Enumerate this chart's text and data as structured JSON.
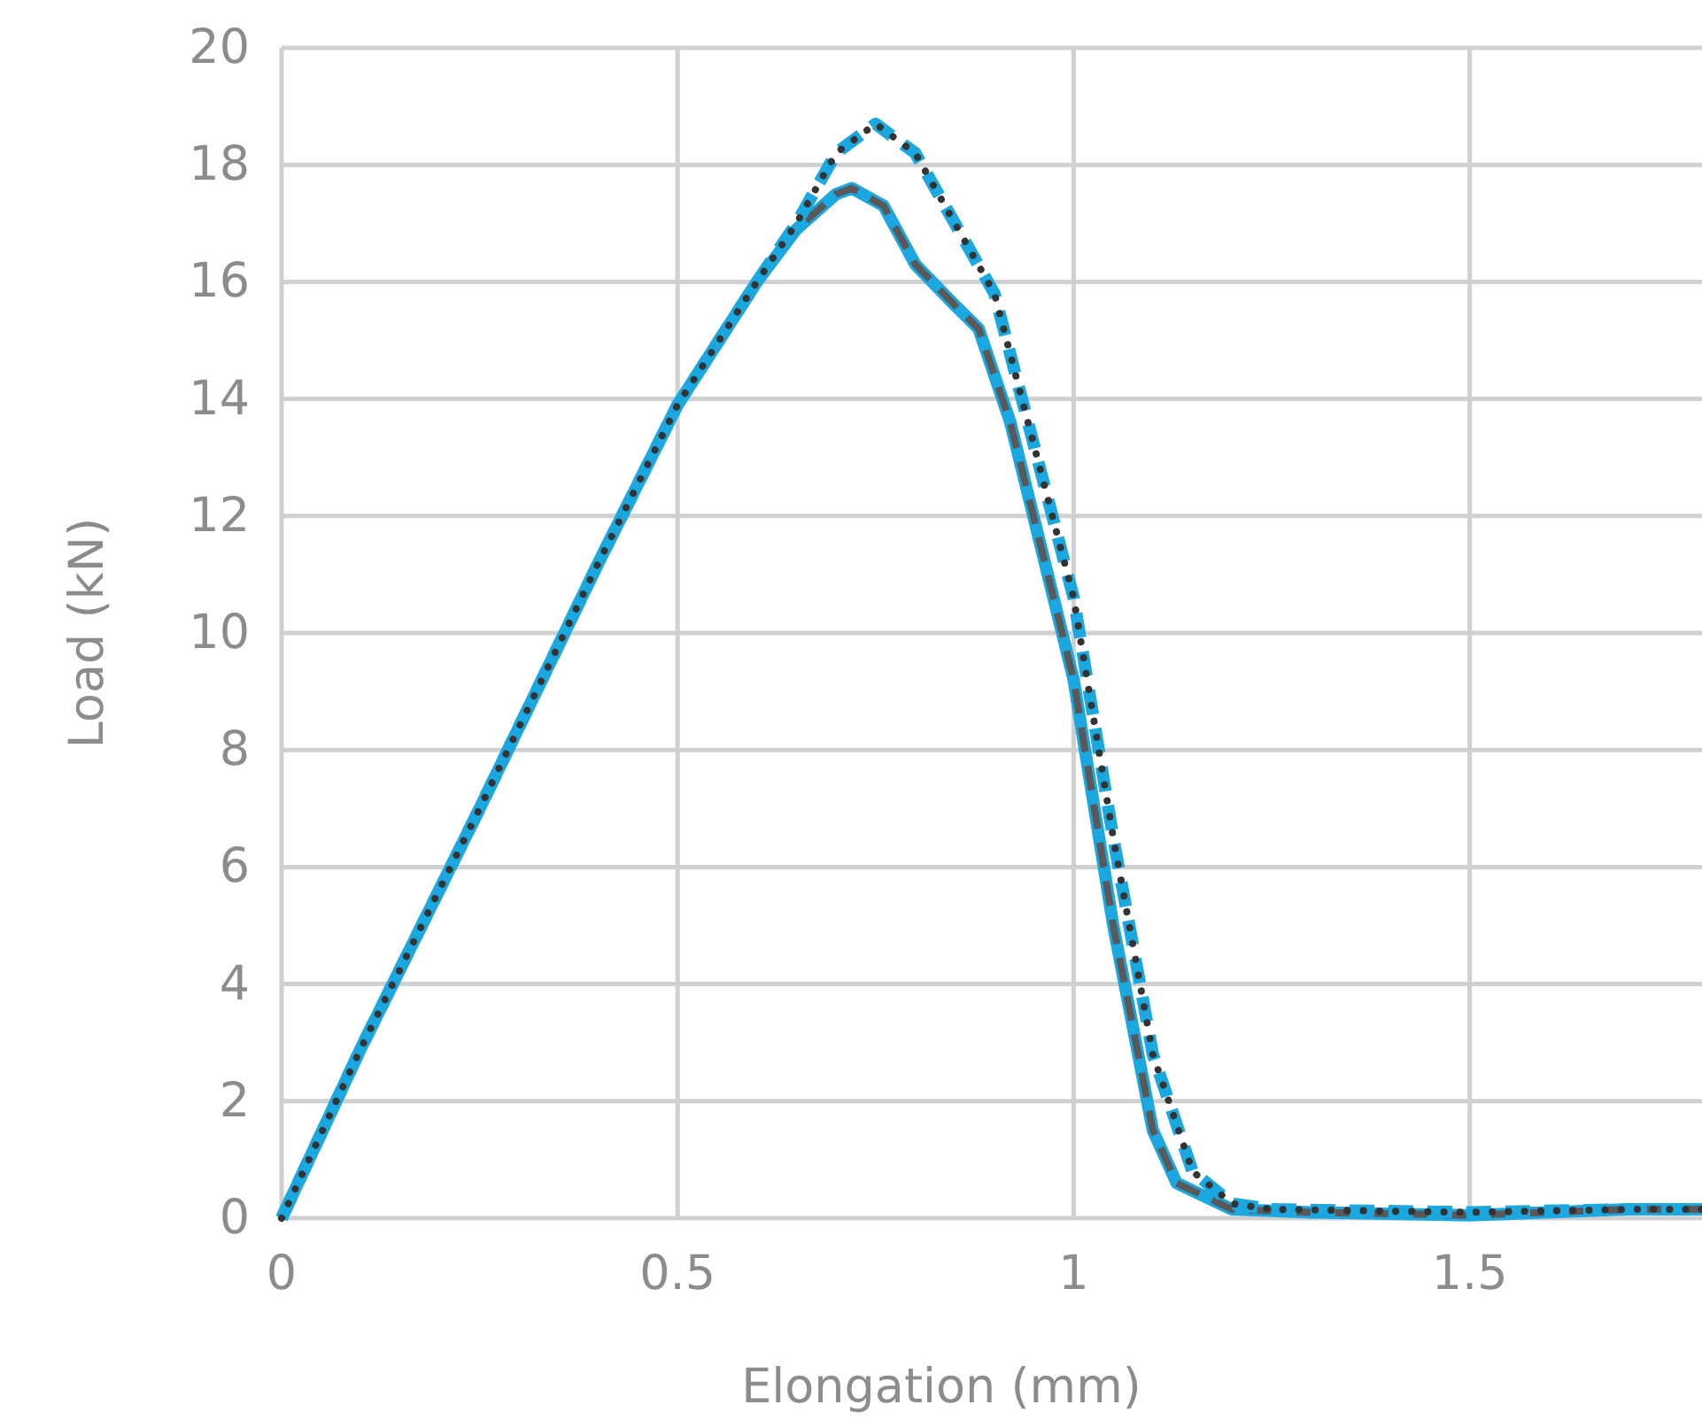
{
  "chart_data": {
    "type": "line",
    "xlabel": "Elongation (mm)",
    "ylabel": "Load (kN)",
    "xlim": [
      0,
      1.8
    ],
    "xticks": [
      0,
      0.5,
      1,
      1.5
    ],
    "ylim": [
      0,
      20
    ],
    "yticks": [
      0,
      2,
      4,
      6,
      8,
      10,
      12,
      14,
      16,
      18,
      20
    ],
    "grid": true,
    "marker": "none",
    "series": [
      {
        "color": "#1ba8e0",
        "line_style": "solid",
        "x": [
          0,
          0.1,
          0.25,
          0.4,
          0.5,
          0.6,
          0.65,
          0.7,
          0.72,
          0.76,
          0.8,
          0.85,
          0.88,
          0.92,
          0.96,
          1.0,
          1.05,
          1.1,
          1.13,
          1.2,
          1.3,
          1.5,
          1.7,
          1.8
        ],
        "values": [
          0,
          2.9,
          7,
          11.2,
          13.9,
          16,
          16.9,
          17.5,
          17.6,
          17.3,
          16.3,
          15.6,
          15.2,
          13.6,
          11.4,
          9.2,
          5,
          1.5,
          0.6,
          0.15,
          0.1,
          0.05,
          0.15,
          0.15
        ]
      },
      {
        "color": "#595959",
        "line_style": "dashed",
        "x": [
          0,
          0.1,
          0.25,
          0.4,
          0.5,
          0.6,
          0.65,
          0.7,
          0.72,
          0.76,
          0.8,
          0.85,
          0.88,
          0.92,
          0.96,
          1.0,
          1.05,
          1.1,
          1.13,
          1.2,
          1.3,
          1.5,
          1.7,
          1.8
        ],
        "values": [
          0,
          2.9,
          7,
          11.2,
          13.9,
          16,
          16.9,
          17.5,
          17.6,
          17.3,
          16.3,
          15.6,
          15.2,
          13.6,
          11.4,
          9.2,
          5,
          1.5,
          0.6,
          0.15,
          0.1,
          0.05,
          0.15,
          0.15
        ]
      },
      {
        "color": "#1ba8e0",
        "line_style": "dashed",
        "x": [
          0,
          0.1,
          0.25,
          0.4,
          0.5,
          0.6,
          0.65,
          0.7,
          0.75,
          0.8,
          0.85,
          0.9,
          0.95,
          1.0,
          1.05,
          1.1,
          1.15,
          1.2,
          1.25,
          1.5,
          1.7,
          1.8
        ],
        "values": [
          0,
          2.9,
          7,
          11.2,
          13.9,
          16,
          17,
          18.2,
          18.7,
          18.2,
          17,
          15.8,
          13.2,
          10.6,
          6.5,
          2.8,
          0.8,
          0.25,
          0.15,
          0.1,
          0.15,
          0.15
        ]
      },
      {
        "color": "#333333",
        "line_style": "dotted",
        "x": [
          0,
          0.1,
          0.25,
          0.4,
          0.5,
          0.6,
          0.65,
          0.7,
          0.75,
          0.8,
          0.85,
          0.9,
          0.95,
          1.0,
          1.05,
          1.1,
          1.15,
          1.2,
          1.25,
          1.5,
          1.7,
          1.8
        ],
        "values": [
          0,
          2.9,
          7,
          11.2,
          13.9,
          16,
          17,
          18.2,
          18.7,
          18.2,
          17,
          15.8,
          13.2,
          10.6,
          6.5,
          2.8,
          0.8,
          0.25,
          0.15,
          0.1,
          0.15,
          0.15
        ]
      }
    ]
  }
}
